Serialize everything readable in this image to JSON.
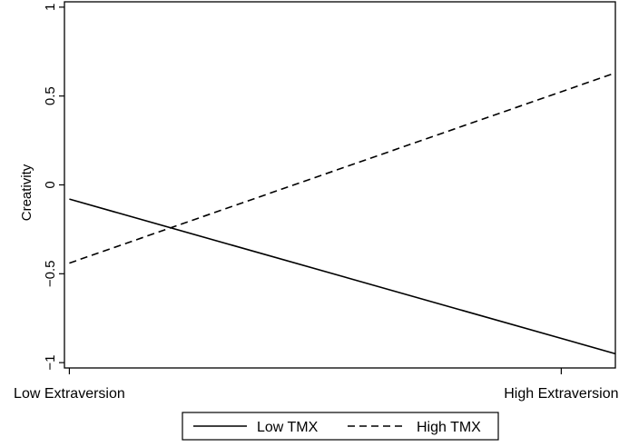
{
  "chart_data": {
    "type": "line",
    "title": "",
    "xlabel": "",
    "ylabel": "Creativity",
    "categories": [
      "Low Extraversion",
      "High Extraversion"
    ],
    "x": [
      0,
      1
    ],
    "xlim": [
      -0.01,
      1.11
    ],
    "ylim": [
      -1.03,
      1.03
    ],
    "yticks": [
      -1,
      -0.5,
      0,
      0.5,
      1
    ],
    "ytick_labels": [
      "−1",
      "−0.5",
      "0",
      "0.5",
      "1"
    ],
    "grid": false,
    "legend_position": "bottom",
    "series": [
      {
        "name": "Low TMX",
        "style": "solid",
        "color": "#000000",
        "points": [
          [
            0,
            -0.08
          ],
          [
            1.11,
            -0.95
          ]
        ]
      },
      {
        "name": "High TMX",
        "style": "dashed",
        "color": "#000000",
        "points": [
          [
            0,
            -0.44
          ],
          [
            1.11,
            0.63
          ]
        ]
      }
    ]
  }
}
